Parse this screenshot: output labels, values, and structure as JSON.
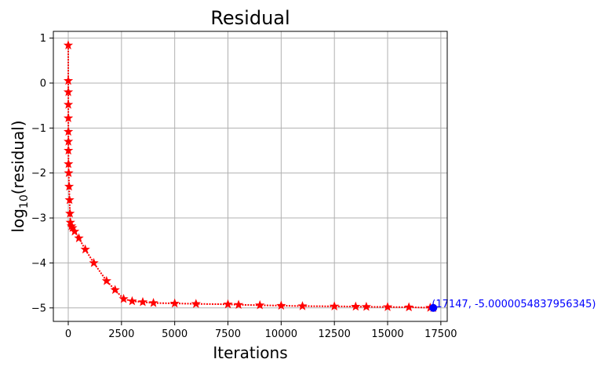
{
  "chart_data": {
    "type": "line",
    "title": "Residual",
    "xlabel": "Iterations",
    "ylabel_main": "log",
    "ylabel_sub": "10",
    "ylabel_rest": "(residual)",
    "xlim": [
      -700,
      17800
    ],
    "ylim": [
      -5.3,
      1.15
    ],
    "xticks": [
      0,
      2500,
      5000,
      7500,
      10000,
      12500,
      15000,
      17500
    ],
    "xtick_labels": [
      "0",
      "2500",
      "5000",
      "7500",
      "10000",
      "12500",
      "15000",
      "17500"
    ],
    "yticks": [
      1,
      0,
      -1,
      -2,
      -3,
      -4,
      -5
    ],
    "ytick_labels": [
      "1",
      "0",
      "−1",
      "−2",
      "−3",
      "−4",
      "−5"
    ],
    "grid": true,
    "series": [
      {
        "color": "#ff0000",
        "marker": "star",
        "x": [
          0,
          1,
          2,
          3,
          4,
          5,
          6,
          7,
          10,
          20,
          40,
          60,
          80,
          100,
          150,
          200,
          300,
          500,
          800,
          1200,
          1800,
          2200,
          2600,
          3000,
          3500,
          4000,
          5000,
          6000,
          7500,
          8000,
          9000,
          10000,
          11000,
          12500,
          13500,
          14000,
          15000,
          16000,
          17000,
          17147
        ],
        "y": [
          0.84,
          0.05,
          -0.2,
          -0.48,
          -0.78,
          -1.08,
          -1.3,
          -1.5,
          -1.8,
          -2.0,
          -2.3,
          -2.6,
          -2.9,
          -3.1,
          -3.18,
          -3.22,
          -3.3,
          -3.45,
          -3.7,
          -4.0,
          -4.4,
          -4.6,
          -4.8,
          -4.85,
          -4.87,
          -4.89,
          -4.9,
          -4.91,
          -4.92,
          -4.93,
          -4.94,
          -4.95,
          -4.96,
          -4.965,
          -4.97,
          -4.975,
          -4.98,
          -4.985,
          -4.995,
          -5.0000054837956345
        ]
      }
    ],
    "highlight": {
      "x": 17147,
      "y": -5.0000054837956345,
      "color": "#0000ff",
      "label": "(17147, -5.0000054837956345)"
    }
  }
}
